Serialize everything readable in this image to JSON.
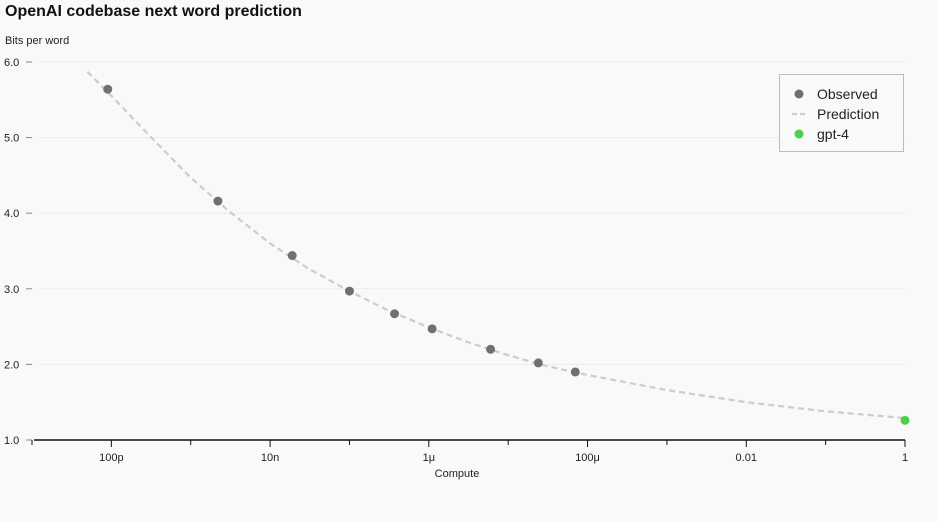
{
  "chart_data": {
    "type": "scatter",
    "title": "OpenAI codebase next word prediction",
    "ylabel": "Bits per word",
    "xlabel": "Compute",
    "x_scale": "log",
    "xlim": [
      1e-11,
      1
    ],
    "ylim": [
      1.0,
      6.0
    ],
    "y_ticks": [
      1.0,
      2.0,
      3.0,
      4.0,
      5.0,
      6.0
    ],
    "y_tick_labels": [
      "1.0",
      "2.0",
      "3.0",
      "4.0",
      "5.0",
      "6.0"
    ],
    "x_ticks": [
      1e-10,
      1e-08,
      1e-06,
      0.0001,
      0.01,
      1
    ],
    "x_tick_labels": [
      "100p",
      "10n",
      "1μ",
      "100μ",
      "0.01",
      "1"
    ],
    "grid": "horizontal",
    "legend_position": "top-right",
    "series": [
      {
        "name": "Observed",
        "kind": "scatter",
        "color": "#707070",
        "points": [
          {
            "x": 9e-11,
            "y": 5.64
          },
          {
            "x": 2.2e-09,
            "y": 4.16
          },
          {
            "x": 1.9e-08,
            "y": 3.44
          },
          {
            "x": 1e-07,
            "y": 2.97
          },
          {
            "x": 3.7e-07,
            "y": 2.67
          },
          {
            "x": 1.1e-06,
            "y": 2.47
          },
          {
            "x": 6e-06,
            "y": 2.2
          },
          {
            "x": 2.4e-05,
            "y": 2.02
          },
          {
            "x": 7e-05,
            "y": 1.9
          }
        ]
      },
      {
        "name": "Prediction",
        "kind": "line",
        "style": "dashed",
        "color": "#cccccc",
        "points": [
          {
            "x": 5e-11,
            "y": 5.87
          },
          {
            "x": 1e-10,
            "y": 5.55
          },
          {
            "x": 3e-10,
            "y": 5.03
          },
          {
            "x": 1e-09,
            "y": 4.47
          },
          {
            "x": 3e-09,
            "y": 4.03
          },
          {
            "x": 1e-08,
            "y": 3.6
          },
          {
            "x": 3e-08,
            "y": 3.27
          },
          {
            "x": 1e-07,
            "y": 2.97
          },
          {
            "x": 3e-07,
            "y": 2.72
          },
          {
            "x": 1e-06,
            "y": 2.49
          },
          {
            "x": 3e-06,
            "y": 2.3
          },
          {
            "x": 1e-05,
            "y": 2.12
          },
          {
            "x": 3e-05,
            "y": 1.98
          },
          {
            "x": 0.0001,
            "y": 1.86
          },
          {
            "x": 0.001,
            "y": 1.66
          },
          {
            "x": 0.01,
            "y": 1.5
          },
          {
            "x": 0.1,
            "y": 1.38
          },
          {
            "x": 1,
            "y": 1.29
          }
        ]
      },
      {
        "name": "gpt-4",
        "kind": "scatter",
        "color": "#4cd04c",
        "points": [
          {
            "x": 1,
            "y": 1.26
          }
        ]
      }
    ]
  }
}
